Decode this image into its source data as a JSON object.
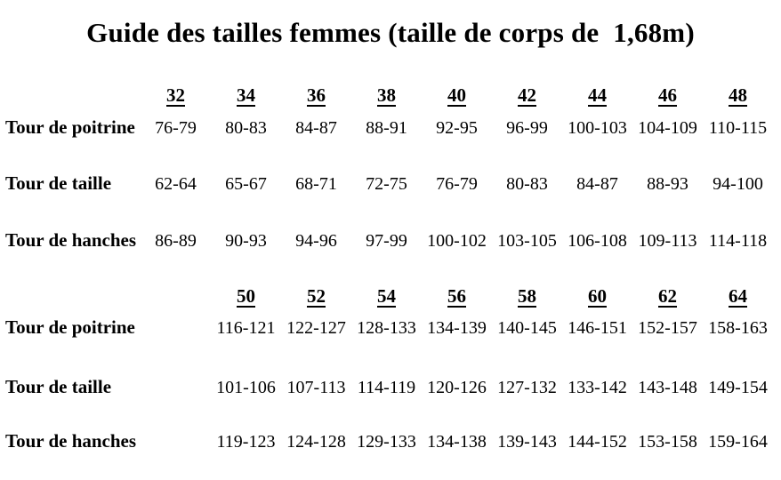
{
  "page": {
    "title": "Guide des tailles femmes (taille de corps de  1,68m)",
    "background_color": "#ffffff",
    "text_color": "#000000"
  },
  "chart_data": {
    "type": "table",
    "title": "Guide des tailles femmes (taille de corps de 1,68m)",
    "tables": [
      {
        "name": "sizes-32-48",
        "sizes": [
          "32",
          "34",
          "36",
          "38",
          "40",
          "42",
          "44",
          "46",
          "48"
        ],
        "rows": [
          {
            "label": "Tour de poitrine",
            "values": [
              "76-79",
              "80-83",
              "84-87",
              "88-91",
              "92-95",
              "96-99",
              "100-103",
              "104-109",
              "110-115"
            ]
          },
          {
            "label": "Tour de taille",
            "values": [
              "62-64",
              "65-67",
              "68-71",
              "72-75",
              "76-79",
              "80-83",
              "84-87",
              "88-93",
              "94-100"
            ]
          },
          {
            "label": "Tour de hanches",
            "values": [
              "86-89",
              "90-93",
              "94-96",
              "97-99",
              "100-102",
              "103-105",
              "106-108",
              "109-113",
              "114-118"
            ]
          }
        ]
      },
      {
        "name": "sizes-50-64",
        "sizes": [
          "50",
          "52",
          "54",
          "56",
          "58",
          "60",
          "62",
          "64"
        ],
        "rows": [
          {
            "label": "Tour de poitrine",
            "values": [
              "116-121",
              "122-127",
              "128-133",
              "134-139",
              "140-145",
              "146-151",
              "152-157",
              "158-163"
            ]
          },
          {
            "label": "Tour de taille",
            "values": [
              "101-106",
              "107-113",
              "114-119",
              "120-126",
              "127-132",
              "133-142",
              "143-148",
              "149-154"
            ]
          },
          {
            "label": "Tour de hanches",
            "values": [
              "119-123",
              "124-128",
              "129-133",
              "134-138",
              "139-143",
              "144-152",
              "153-158",
              "159-164"
            ]
          }
        ]
      }
    ]
  }
}
